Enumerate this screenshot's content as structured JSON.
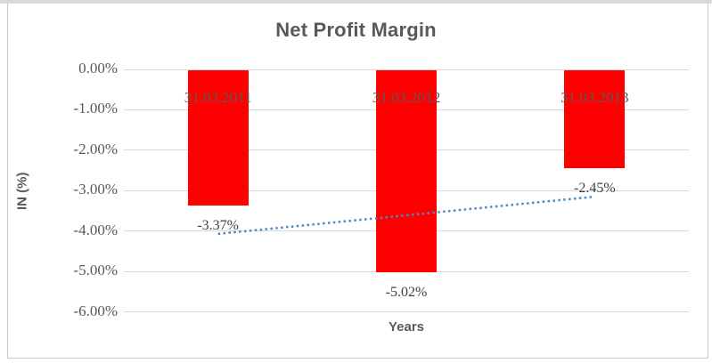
{
  "window": {
    "top_strip_color": "#D9D9D9",
    "frame_border_color": "#C9C9C9",
    "background_color": "#FFFFFF"
  },
  "chart_data": {
    "type": "bar",
    "title": "Net Profit Margin",
    "categories": [
      "31.03.2011",
      "31.03.2012",
      "31.03.2013"
    ],
    "series": [
      {
        "name": "Net Profit Margin",
        "values": [
          -3.37,
          -5.02,
          -2.45
        ]
      }
    ],
    "data_labels": [
      "-3.37%",
      "-5.02%",
      "-2.45%"
    ],
    "xlabel": "Years",
    "ylabel": "IN (%)",
    "ylim": [
      -6,
      0
    ],
    "ytick_labels": [
      "0.00%",
      "-1.00%",
      "-2.00%",
      "-3.00%",
      "-4.00%",
      "-5.00%",
      "-6.00%"
    ],
    "grid": true,
    "legend": "none",
    "bar_color": "#FF0000",
    "gridline_color": "#D9D9D9",
    "title_color": "#595959",
    "axis_title_color": "#595959",
    "tick_label_color": "#595959",
    "category_label_color": "#595959",
    "value_label_color": "#404040",
    "trendline": {
      "type": "linear",
      "style": "dotted",
      "color": "#4E86C8",
      "endpoint_values": [
        -4.07,
        -3.15
      ]
    }
  }
}
